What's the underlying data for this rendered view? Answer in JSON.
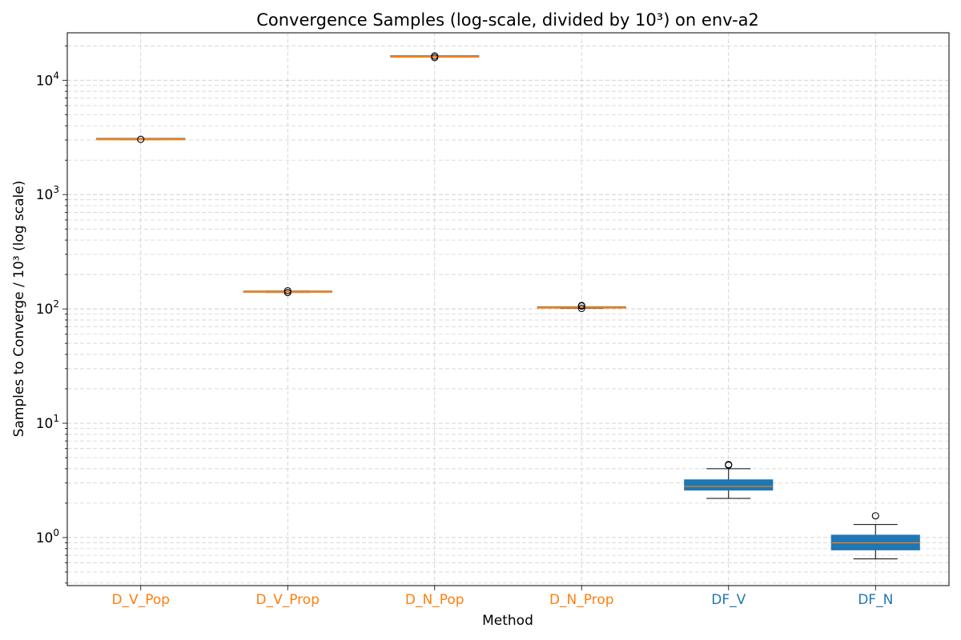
{
  "chart_data": {
    "type": "box",
    "title": "Convergence Samples (log-scale, divided by 10³) on env-a2",
    "xlabel": "Method",
    "ylabel": "Samples to Converge / 10³ (log scale)",
    "y_scale": "log",
    "ylim": [
      0.38,
      26000
    ],
    "y_ticks": [
      {
        "value": 1,
        "base": "10",
        "exp": "0"
      },
      {
        "value": 10,
        "base": "10",
        "exp": "1"
      },
      {
        "value": 100,
        "base": "10",
        "exp": "2"
      },
      {
        "value": 1000,
        "base": "10",
        "exp": "3"
      },
      {
        "value": 10000,
        "base": "10",
        "exp": "4"
      }
    ],
    "grid": true,
    "colors": {
      "orange": "#ff7f0e",
      "blue": "#1f77b4",
      "grid": "#cccccc"
    },
    "categories": [
      "D_V_Pop",
      "D_V_Prop",
      "D_N_Pop",
      "D_N_Prop",
      "DF_V",
      "DF_N"
    ],
    "boxes": [
      {
        "label": "D_V_Pop",
        "group": "orange",
        "whisker_low": 3020,
        "q1": 3030,
        "median": 3040,
        "q3": 3050,
        "whisker_high": 3060,
        "outliers": [
          3040
        ]
      },
      {
        "label": "D_V_Prop",
        "group": "orange",
        "whisker_low": 139,
        "q1": 140,
        "median": 141,
        "q3": 142,
        "whisker_high": 143,
        "outliers": [
          139,
          144
        ]
      },
      {
        "label": "D_N_Pop",
        "group": "orange",
        "whisker_low": 15950,
        "q1": 16000,
        "median": 16050,
        "q3": 16100,
        "whisker_high": 16150,
        "outliers": [
          15800,
          16300
        ]
      },
      {
        "label": "D_N_Prop",
        "group": "orange",
        "whisker_low": 101,
        "q1": 102,
        "median": 102.5,
        "q3": 103,
        "whisker_high": 104,
        "outliers": [
          101,
          106,
          107
        ]
      },
      {
        "label": "DF_V",
        "group": "blue",
        "whisker_low": 2.2,
        "q1": 2.6,
        "median": 2.8,
        "q3": 3.2,
        "whisker_high": 4.0,
        "outliers": [
          4.3,
          4.35
        ]
      },
      {
        "label": "DF_N",
        "group": "blue",
        "whisker_low": 0.65,
        "q1": 0.78,
        "median": 0.9,
        "q3": 1.05,
        "whisker_high": 1.3,
        "outliers": [
          1.55
        ]
      }
    ]
  }
}
